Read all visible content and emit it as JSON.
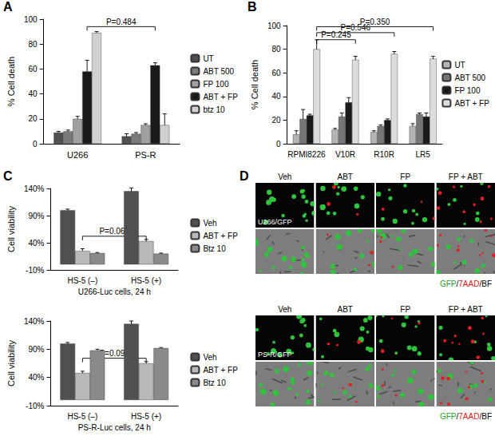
{
  "chart_data": [
    {
      "panel_label": "A",
      "type": "bar",
      "y_label": "% Cell death",
      "categories": [
        "U266",
        "PS-R"
      ],
      "ylim": [
        0,
        100
      ],
      "yticks": [
        0,
        20,
        40,
        60,
        80,
        100
      ],
      "grid": false,
      "legend": "right",
      "series": [
        {
          "name": "UT",
          "color": "#505050",
          "values": [
            9,
            6
          ],
          "errors": [
            1,
            2
          ]
        },
        {
          "name": "ABT 500",
          "color": "#7a7a7a",
          "values": [
            10,
            8
          ],
          "errors": [
            1,
            1
          ]
        },
        {
          "name": "FP 100",
          "color": "#a0a0a0",
          "values": [
            20,
            15
          ],
          "errors": [
            2,
            1
          ]
        },
        {
          "name": "ABT + FP",
          "color": "#1a1a1a",
          "values": [
            58,
            63
          ],
          "errors": [
            9,
            2
          ]
        },
        {
          "name": "btz 10",
          "color": "#d0d0d0",
          "values": [
            89,
            15
          ],
          "errors": [
            1,
            9
          ]
        }
      ],
      "annotations": [
        {
          "text": "P=0.484",
          "from": {
            "category": 0,
            "series": 3
          },
          "to": {
            "category": 1,
            "series": 3
          },
          "y": 94
        }
      ]
    },
    {
      "panel_label": "B",
      "type": "bar",
      "y_label": "% Cell death",
      "categories": [
        "RPMI8226",
        "V10R",
        "R10R",
        "LR5"
      ],
      "ylim": [
        0,
        100
      ],
      "yticks": [
        0,
        20,
        40,
        60,
        80,
        100
      ],
      "grid": false,
      "legend": "right",
      "series": [
        {
          "name": "UT",
          "color": "#b4b4b4",
          "values": [
            8,
            12,
            10,
            15
          ],
          "errors": [
            3,
            1,
            1,
            2
          ]
        },
        {
          "name": "ABT 500",
          "color": "#767676",
          "values": [
            21,
            23,
            15,
            25
          ],
          "errors": [
            8,
            3,
            1,
            1
          ]
        },
        {
          "name": "FP 100",
          "color": "#1a1a1a",
          "values": [
            24,
            35,
            20,
            23
          ],
          "errors": [
            1,
            4,
            1,
            3
          ]
        },
        {
          "name": "ABT + FP",
          "color": "#dcdcdc",
          "values": [
            80,
            71,
            76,
            72
          ],
          "errors": [
            8,
            3,
            2,
            2
          ]
        }
      ],
      "annotations": [
        {
          "text": "P=0.245",
          "from": {
            "category": 0,
            "series": 3
          },
          "to": {
            "category": 1,
            "series": 3
          },
          "y": 88
        },
        {
          "text": "P=0.546",
          "from": {
            "category": 0,
            "series": 3
          },
          "to": {
            "category": 2,
            "series": 3
          },
          "y": 94
        },
        {
          "text": "P=0.350",
          "from": {
            "category": 0,
            "series": 3
          },
          "to": {
            "category": 3,
            "series": 3
          },
          "y": 99
        }
      ]
    },
    {
      "panel_label": "C",
      "type": "bar",
      "y_label": "Cell viability",
      "x_label": "U266-Luc cells, 24 h",
      "categories": [
        "HS-5 (–)",
        "HS-5 (+)"
      ],
      "ylim": [
        -10,
        140
      ],
      "yticks": [
        {
          "value": -10,
          "label": "-10%"
        },
        {
          "value": 40,
          "label": "40%"
        },
        {
          "value": 90,
          "label": "90%"
        },
        {
          "value": 140,
          "label": "140%"
        }
      ],
      "grid": false,
      "legend": "right",
      "series": [
        {
          "name": "Veh",
          "color": "#505050",
          "values": [
            100,
            135
          ],
          "errors": [
            2,
            6
          ]
        },
        {
          "name": "ABT + FP",
          "color": "#b8b8b8",
          "values": [
            25,
            43
          ],
          "errors": [
            4,
            3
          ]
        },
        {
          "name": "Btz 10",
          "color": "#8a8a8a",
          "values": [
            21,
            20
          ],
          "errors": [
            1,
            1
          ]
        }
      ],
      "annotations": [
        {
          "text": "P=0.060",
          "from": {
            "category": 0,
            "series": 1
          },
          "to": {
            "category": 1,
            "series": 1
          },
          "y": 52
        }
      ]
    },
    {
      "type": "bar",
      "y_label": "Cell viability",
      "x_label": "PS-R-Luc cells, 24 h",
      "categories": [
        "HS-5 (–)",
        "HS-5 (+)"
      ],
      "ylim": [
        -10,
        140
      ],
      "yticks": [
        {
          "value": -10,
          "label": "-10%"
        },
        {
          "value": 40,
          "label": "40%"
        },
        {
          "value": 90,
          "label": "90%"
        },
        {
          "value": 140,
          "label": "140%"
        }
      ],
      "grid": false,
      "legend": "right",
      "series": [
        {
          "name": "Veh",
          "color": "#505050",
          "values": [
            100,
            135
          ],
          "errors": [
            2,
            5
          ]
        },
        {
          "name": "ABT + FP",
          "color": "#b8b8b8",
          "values": [
            48,
            65
          ],
          "errors": [
            3,
            3
          ]
        },
        {
          "name": "Btz 10",
          "color": "#8a8a8a",
          "values": [
            88,
            92
          ],
          "errors": [
            2,
            1
          ]
        }
      ],
      "annotations": [
        {
          "text": "P=0.093",
          "from": {
            "category": 0,
            "series": 1
          },
          "to": {
            "category": 1,
            "series": 1
          },
          "y": 74
        }
      ]
    }
  ],
  "panel_d": {
    "panel_label": "D",
    "columns": [
      "Veh",
      "ABT",
      "FP",
      "FP + ABT"
    ],
    "blocks": [
      {
        "label": "U266/GFP"
      },
      {
        "label": "PS-R/GFP"
      }
    ],
    "legend": [
      {
        "text": "GFP",
        "color": "#1f9d2e"
      },
      {
        "text": "7AAD",
        "color": "#d42020"
      },
      {
        "text": "BF",
        "color": "#000000"
      }
    ],
    "separator": "/"
  }
}
